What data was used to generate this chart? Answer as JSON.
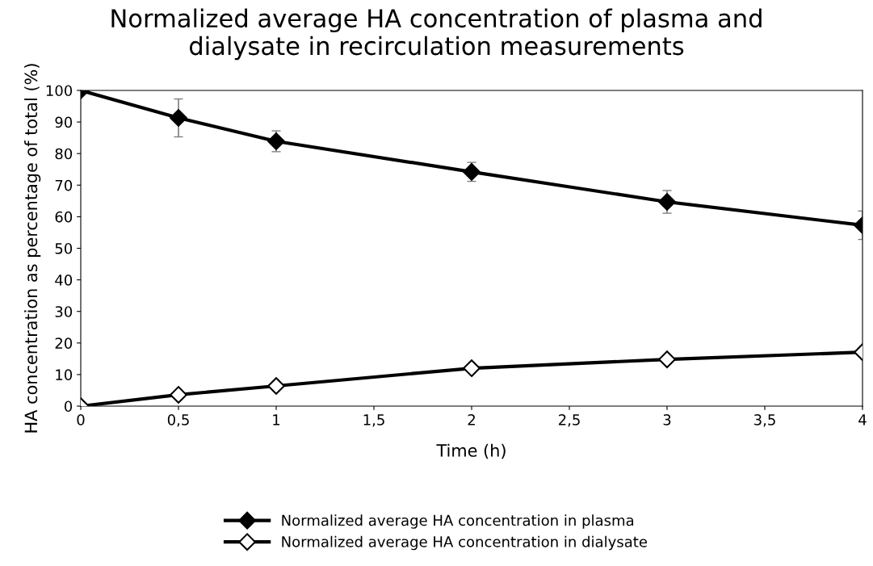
{
  "chart_data": {
    "type": "line",
    "title": "Normalized average HA concentration of plasma and\ndialysate in recirculation measurements",
    "xlabel": "Time (h)",
    "ylabel": "HA concentration as percentage of total (%)",
    "x": [
      0,
      0.5,
      1,
      2,
      3,
      4
    ],
    "series": [
      {
        "name": "Normalized average HA concentration in plasma",
        "color": "#000000",
        "values": [
          100,
          91.3,
          83.9,
          74.2,
          64.7,
          57.3
        ],
        "errors": [
          null,
          6,
          3.3,
          3,
          3.6,
          4.5
        ]
      },
      {
        "name": "Normalized average HA concentration in dialysate",
        "color": "#000000",
        "values": [
          0,
          3.6,
          6.4,
          12.0,
          14.8,
          17.1
        ]
      }
    ],
    "xlim": [
      0,
      4
    ],
    "xticks": [
      {
        "value": 0,
        "label": "0"
      },
      {
        "value": 0.5,
        "label": "0,5"
      },
      {
        "value": 1,
        "label": "1"
      },
      {
        "value": 1.5,
        "label": "1,5"
      },
      {
        "value": 2,
        "label": "2"
      },
      {
        "value": 2.5,
        "label": "2,5"
      },
      {
        "value": 3,
        "label": "3"
      },
      {
        "value": 3.5,
        "label": "3,5"
      },
      {
        "value": 4,
        "label": "4"
      }
    ],
    "ylim": [
      0,
      100
    ],
    "yticks": [
      0,
      10,
      20,
      30,
      40,
      50,
      60,
      70,
      80,
      90,
      100
    ],
    "grid": false,
    "legend": "bottom",
    "marker": "diamond",
    "line_style": "solid"
  }
}
